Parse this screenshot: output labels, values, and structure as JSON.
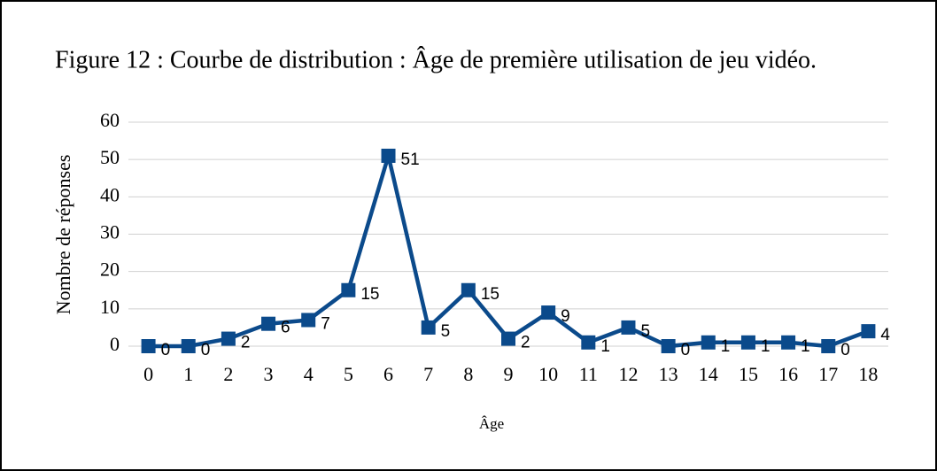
{
  "chart_data": {
    "type": "line",
    "title": "Figure 12 : Courbe de distribution : Âge de première utilisation de jeu vidéo.",
    "ylabel": "Nombre de réponses",
    "xlabel": "Âge",
    "categories": [
      "0",
      "1",
      "2",
      "3",
      "4",
      "5",
      "6",
      "7",
      "8",
      "9",
      "10",
      "11",
      "12",
      "13",
      "14",
      "15",
      "16",
      "17",
      "18"
    ],
    "values": [
      0,
      0,
      2,
      6,
      7,
      15,
      51,
      5,
      15,
      2,
      9,
      1,
      5,
      0,
      1,
      1,
      1,
      0,
      4
    ],
    "color": "#0b4a8b",
    "ylim": [
      0,
      60
    ],
    "yticks": [
      0,
      10,
      20,
      30,
      40,
      50,
      60
    ],
    "grid": true
  }
}
